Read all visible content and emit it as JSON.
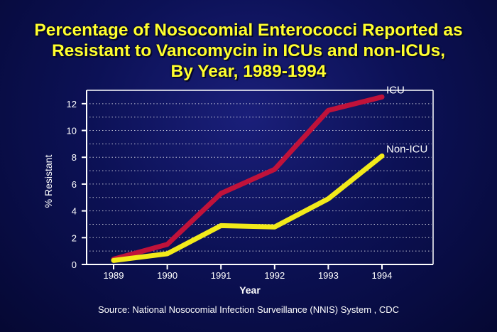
{
  "title_lines": [
    "Percentage of Nosocomial Enterococci Reported as",
    "Resistant to Vancomycin in ICUs and non-ICUs,",
    "By Year, 1989-1994"
  ],
  "source": "Source:  National Nosocomial Infection Surveillance (NNIS) System , CDC",
  "chart_data": {
    "type": "line",
    "title": "Percentage of Nosocomial Enterococci Reported as Resistant to Vancomycin in ICUs and non-ICUs, By Year, 1989-1994",
    "xlabel": "Year",
    "ylabel": "% Resistant",
    "x": [
      1989,
      1990,
      1991,
      1992,
      1993,
      1994
    ],
    "xticks": [
      "1989",
      "1990",
      "1991",
      "1992",
      "1993",
      "1994"
    ],
    "ylim": [
      0,
      13
    ],
    "yticks": [
      "0",
      "2",
      "4",
      "6",
      "8",
      "10",
      "12"
    ],
    "grid": "horizontal dotted",
    "series": [
      {
        "name": "ICU",
        "values": [
          0.4,
          1.5,
          5.3,
          7.1,
          11.5,
          12.5
        ],
        "color": "#c0123a"
      },
      {
        "name": "Non-ICU",
        "values": [
          0.3,
          0.8,
          2.9,
          2.8,
          4.9,
          8.1
        ],
        "color": "#f2ea1a"
      }
    ]
  }
}
